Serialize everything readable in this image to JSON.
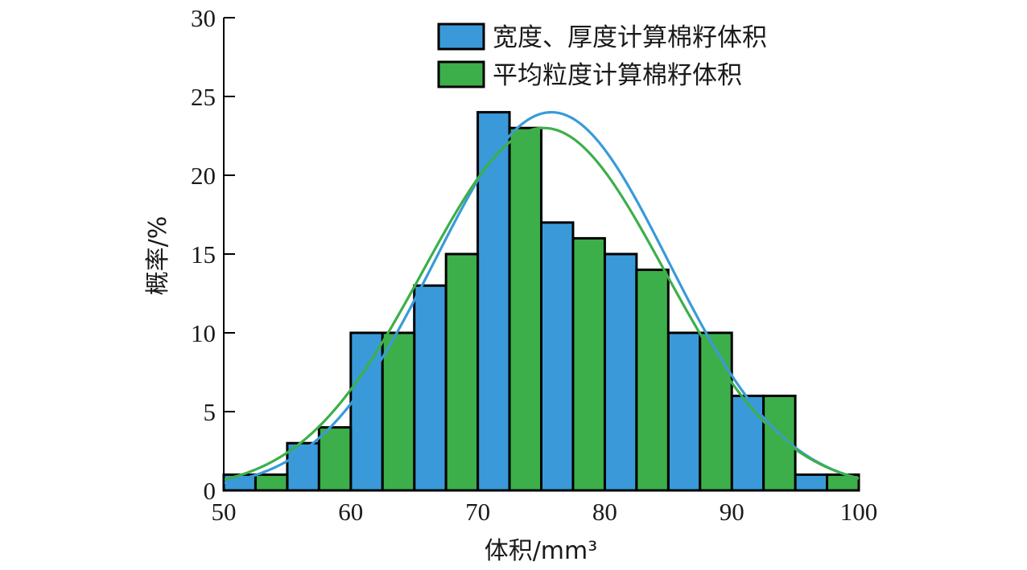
{
  "chart_data": {
    "type": "bar",
    "xlabel": "体积/mm³",
    "ylabel": "概率/%",
    "xlim": [
      50,
      100
    ],
    "ylim": [
      0,
      30
    ],
    "x_ticks": [
      "50",
      "60",
      "70",
      "80",
      "90",
      "100"
    ],
    "y_ticks": [
      "0",
      "5",
      "10",
      "15",
      "20",
      "25",
      "30"
    ],
    "bin_width": 2.5,
    "legend_position": "top-right",
    "series": [
      {
        "name": "宽度、厚度计算棉籽体积",
        "color": "#3a9ad9",
        "bins": [
          {
            "x0": 50,
            "value": 1
          },
          {
            "x0": 55,
            "value": 3
          },
          {
            "x0": 60,
            "value": 10
          },
          {
            "x0": 65,
            "value": 13
          },
          {
            "x0": 70,
            "value": 24
          },
          {
            "x0": 75,
            "value": 17
          },
          {
            "x0": 80,
            "value": 15
          },
          {
            "x0": 85,
            "value": 10
          },
          {
            "x0": 90,
            "value": 6
          },
          {
            "x0": 95,
            "value": 1
          }
        ],
        "fit": {
          "mean": 75.8,
          "std": 9.2,
          "peak": 24
        }
      },
      {
        "name": "平均粒度计算棉籽体积",
        "color": "#3daf4a",
        "bins": [
          {
            "x0": 52.5,
            "value": 1
          },
          {
            "x0": 57.5,
            "value": 4
          },
          {
            "x0": 62.5,
            "value": 10
          },
          {
            "x0": 67.5,
            "value": 15
          },
          {
            "x0": 72.5,
            "value": 23
          },
          {
            "x0": 77.5,
            "value": 16
          },
          {
            "x0": 82.5,
            "value": 14
          },
          {
            "x0": 87.5,
            "value": 10
          },
          {
            "x0": 92.5,
            "value": 6
          },
          {
            "x0": 97.5,
            "value": 1
          }
        ],
        "fit": {
          "mean": 75.2,
          "std": 9.5,
          "peak": 23
        }
      }
    ]
  }
}
